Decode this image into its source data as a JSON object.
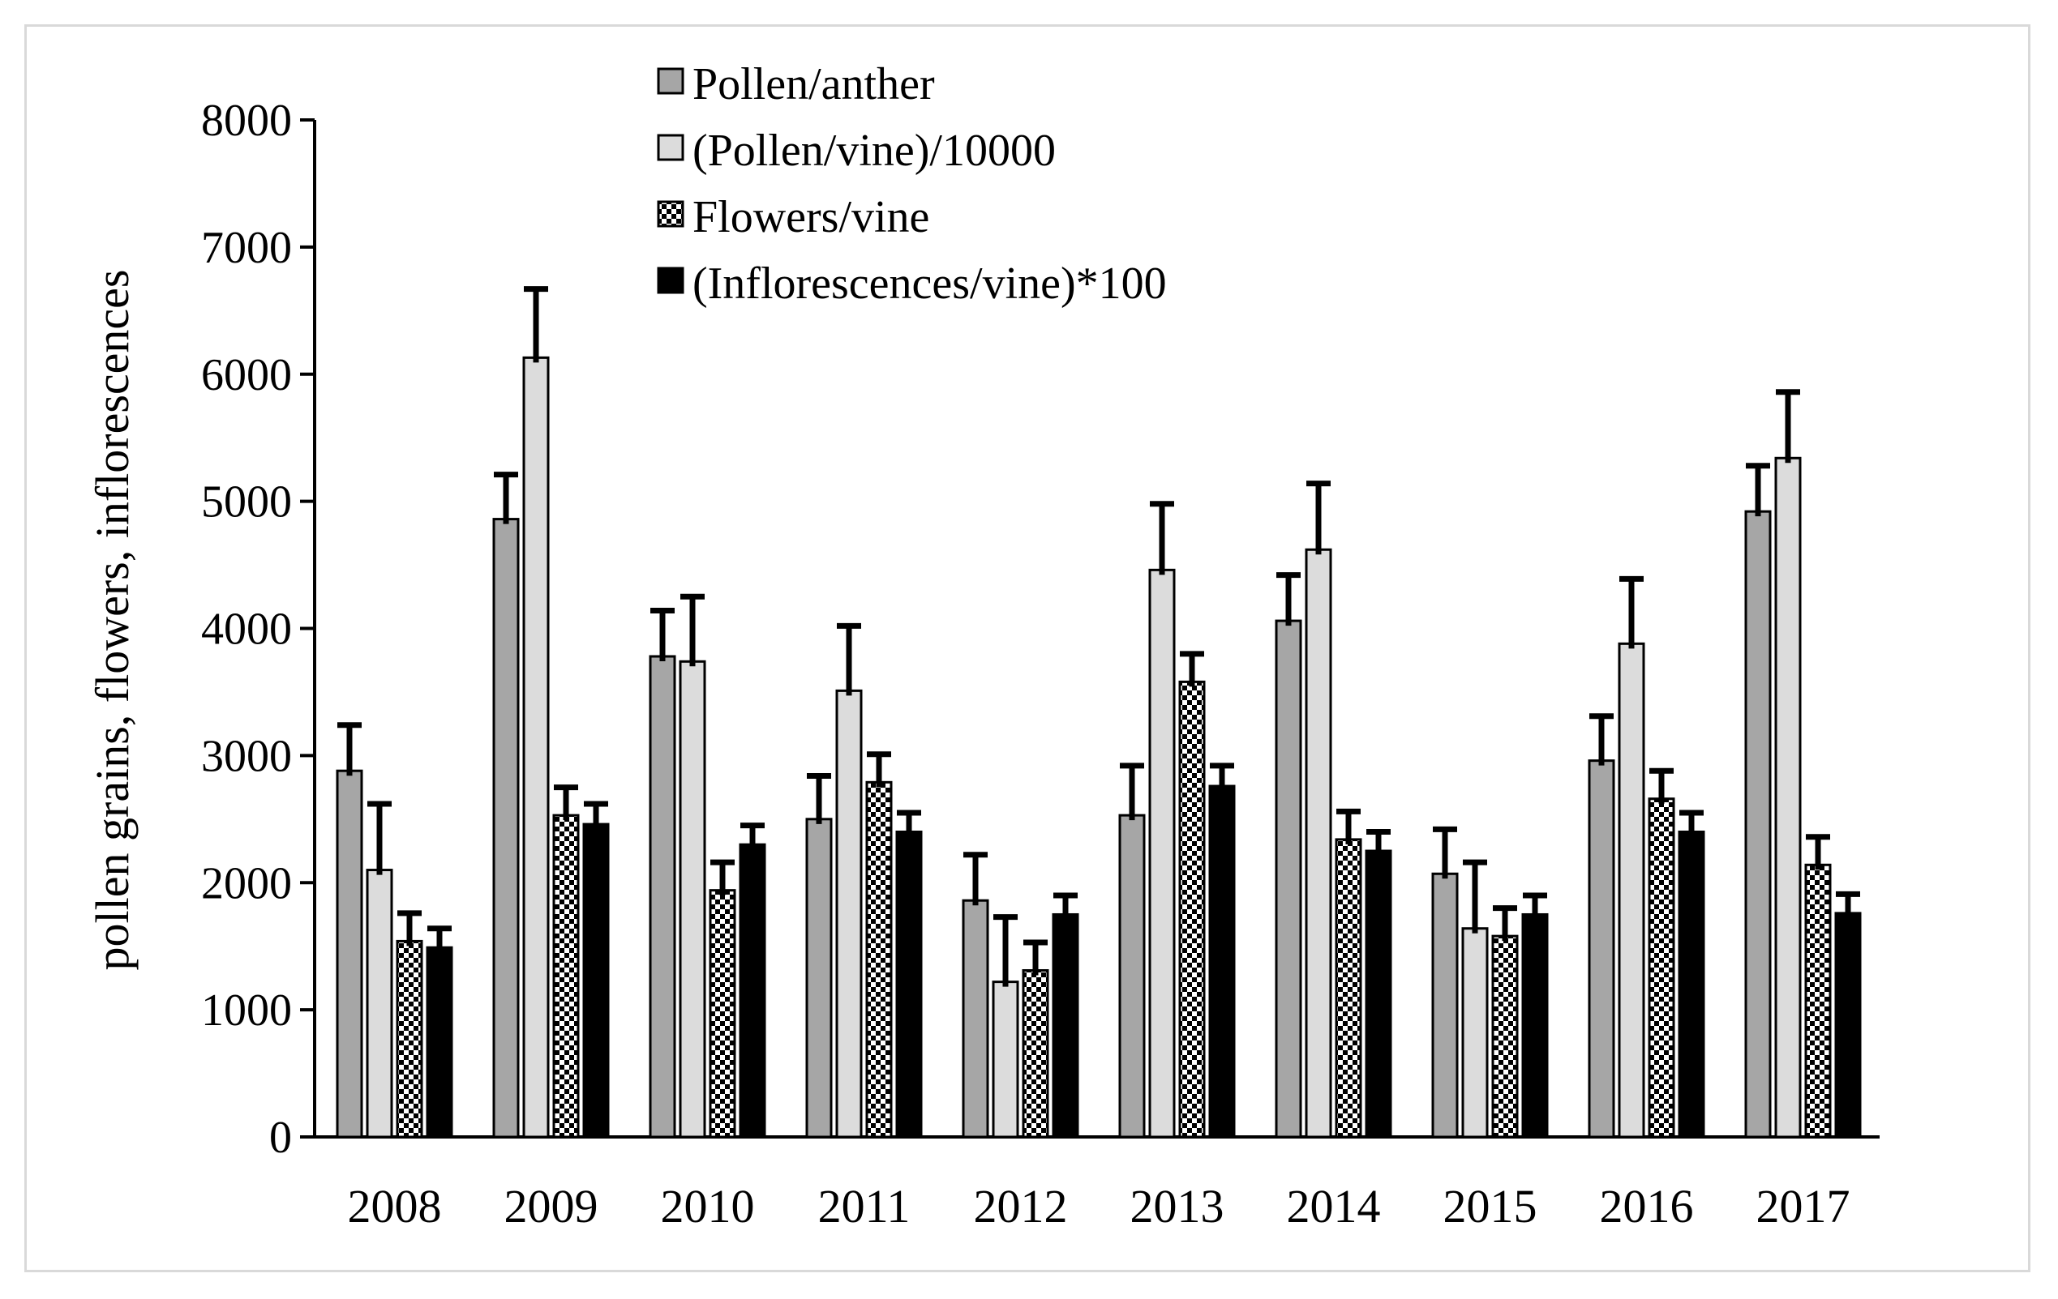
{
  "chart_data": {
    "type": "bar",
    "title": "",
    "xlabel": "",
    "ylabel": "pollen grains, flowers, inflorescences",
    "ylim": [
      0,
      8000
    ],
    "yticks": [
      "0",
      "1000",
      "2000",
      "3000",
      "4000",
      "5000",
      "6000",
      "7000",
      "8000"
    ],
    "grid": false,
    "legend_position": "top-center",
    "categories": [
      "2008",
      "2009",
      "2010",
      "2011",
      "2012",
      "2013",
      "2014",
      "2015",
      "2016",
      "2017"
    ],
    "series": [
      {
        "name": "Pollen/anther",
        "pattern": "solid-gray",
        "color": "#a6a6a6",
        "values": [
          2880,
          4860,
          3780,
          2500,
          1860,
          2530,
          4060,
          2070,
          2960,
          4920
        ],
        "errors": [
          360,
          350,
          360,
          340,
          360,
          390,
          360,
          350,
          350,
          360
        ]
      },
      {
        "name": "(Pollen/vine)/10000",
        "pattern": "solid-lightgray",
        "color": "#dcdcdc",
        "values": [
          2100,
          6130,
          3740,
          3510,
          1220,
          4460,
          4620,
          1640,
          3880,
          5340
        ],
        "errors": [
          520,
          540,
          510,
          510,
          510,
          520,
          520,
          520,
          510,
          520
        ]
      },
      {
        "name": "Flowers/vine",
        "pattern": "checker",
        "color": "#000000",
        "values": [
          1540,
          2530,
          1940,
          2790,
          1310,
          3580,
          2340,
          1580,
          2660,
          2140
        ],
        "errors": [
          220,
          220,
          220,
          220,
          220,
          220,
          220,
          220,
          220,
          220
        ]
      },
      {
        "name": "(Inflorescences/vine)*100",
        "pattern": "solid-black",
        "color": "#000000",
        "values": [
          1490,
          2460,
          2300,
          2400,
          1750,
          2760,
          2250,
          1750,
          2400,
          1760
        ],
        "errors": [
          150,
          160,
          150,
          150,
          150,
          160,
          150,
          150,
          150,
          150
        ]
      }
    ]
  },
  "colors": {
    "axis": "#000000",
    "frame_border": "#d9d9d9",
    "bar_outline": "#000000"
  }
}
